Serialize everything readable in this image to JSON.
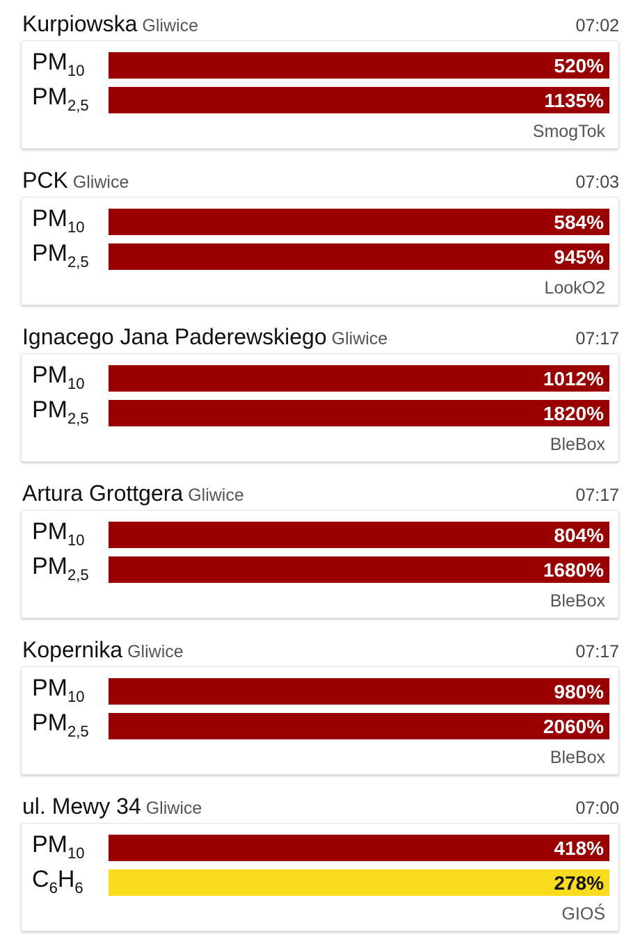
{
  "stations": [
    {
      "name": "Kurpiowska",
      "city": "Gliwice",
      "time": "07:02",
      "source": "SmogTok",
      "readings": [
        {
          "base": "PM",
          "sub": "10",
          "value": "520%",
          "level": "red"
        },
        {
          "base": "PM",
          "sub": "2,5",
          "value": "1135%",
          "level": "red"
        }
      ]
    },
    {
      "name": "PCK",
      "city": "Gliwice",
      "time": "07:03",
      "source": "LookO2",
      "readings": [
        {
          "base": "PM",
          "sub": "10",
          "value": "584%",
          "level": "red"
        },
        {
          "base": "PM",
          "sub": "2,5",
          "value": "945%",
          "level": "red"
        }
      ]
    },
    {
      "name": "Ignacego Jana Paderewskiego",
      "city": "Gliwice",
      "time": "07:17",
      "source": "BleBox",
      "readings": [
        {
          "base": "PM",
          "sub": "10",
          "value": "1012%",
          "level": "red"
        },
        {
          "base": "PM",
          "sub": "2,5",
          "value": "1820%",
          "level": "red"
        }
      ]
    },
    {
      "name": "Artura Grottgera",
      "city": "Gliwice",
      "time": "07:17",
      "source": "BleBox",
      "readings": [
        {
          "base": "PM",
          "sub": "10",
          "value": "804%",
          "level": "red"
        },
        {
          "base": "PM",
          "sub": "2,5",
          "value": "1680%",
          "level": "red"
        }
      ]
    },
    {
      "name": "Kopernika",
      "city": "Gliwice",
      "time": "07:17",
      "source": "BleBox",
      "readings": [
        {
          "base": "PM",
          "sub": "10",
          "value": "980%",
          "level": "red"
        },
        {
          "base": "PM",
          "sub": "2,5",
          "value": "2060%",
          "level": "red"
        }
      ]
    },
    {
      "name": "ul. Mewy 34",
      "city": "Gliwice",
      "time": "07:00",
      "source": "GIOŚ",
      "readings": [
        {
          "base": "PM",
          "sub": "10",
          "value": "418%",
          "level": "red"
        },
        {
          "formula": [
            [
              "C",
              "6"
            ],
            [
              "H",
              "6"
            ]
          ],
          "value": "278%",
          "level": "yellow"
        }
      ]
    }
  ],
  "colors": {
    "red": "#9b0000",
    "yellow": "#fadc1e"
  }
}
